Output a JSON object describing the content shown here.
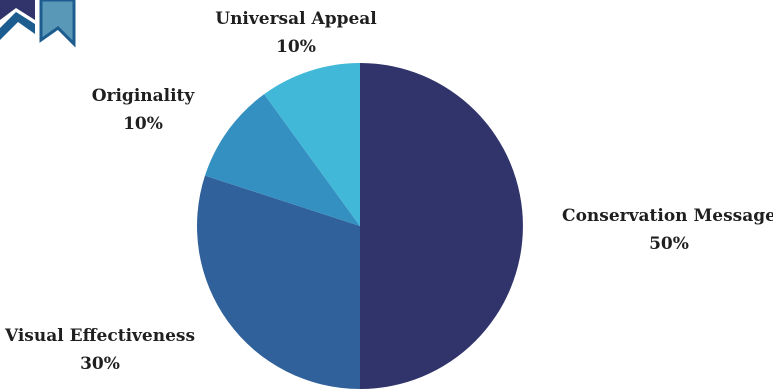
{
  "chart_data": {
    "type": "pie",
    "title": "",
    "slices": [
      {
        "label": "Conservation Message",
        "value": 50,
        "value_label": "50%",
        "color": "#31346a"
      },
      {
        "label": "Visual Effectiveness",
        "value": 30,
        "value_label": "30%",
        "color": "#31619a"
      },
      {
        "label": "Originality",
        "value": 10,
        "value_label": "10%",
        "color": "#3590c2"
      },
      {
        "label": "Universal Appeal",
        "value": 10,
        "value_label": "10%",
        "color": "#42b8d8"
      }
    ],
    "start_angle_deg": 0,
    "direction": "clockwise"
  },
  "decoration": {
    "ribbon_icon": "ribbon-icon",
    "ribbon_colors": [
      "#31346a",
      "#5a98b8",
      "#1d5c8f"
    ]
  }
}
